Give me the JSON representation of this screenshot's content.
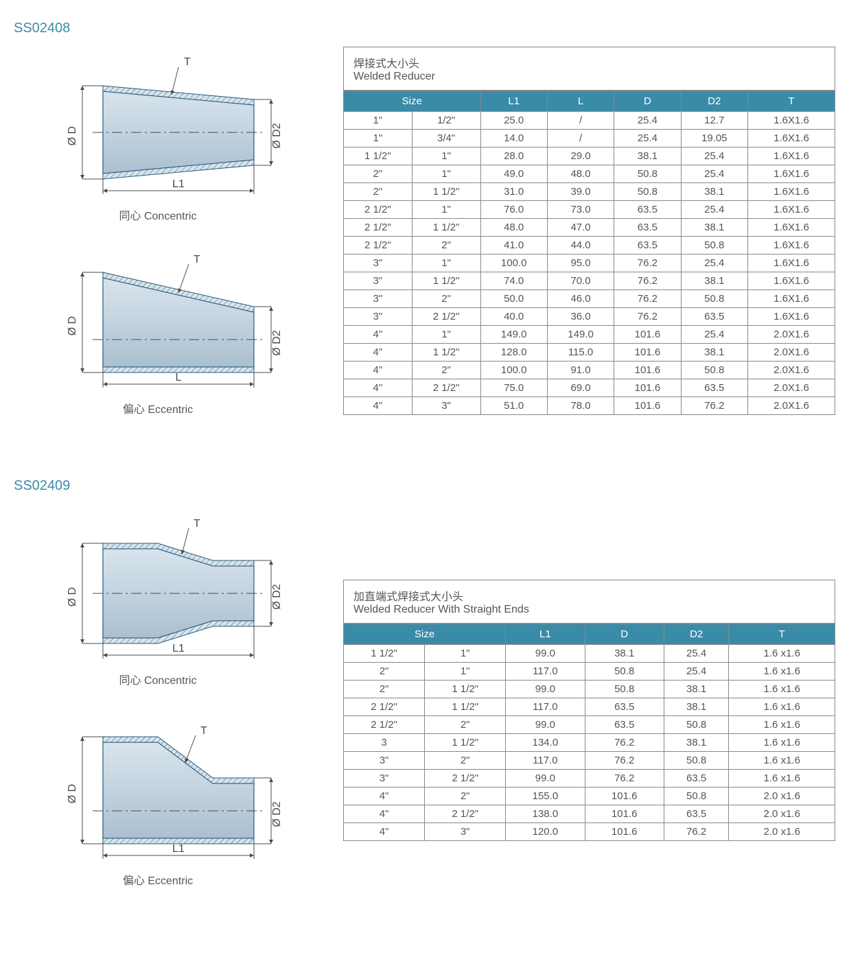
{
  "colors": {
    "accent": "#3a8ba8",
    "text": "#555555",
    "border": "#888888",
    "shape_light": "#d8e4ec",
    "shape_dark": "#aabfd0",
    "shape_stroke": "#2a5a7a"
  },
  "section1": {
    "code": "SS02408",
    "diagram1_label": "同心 Concentric",
    "diagram2_label": "偏心 Eccentric",
    "dim_D": "Ø D",
    "dim_D2": "Ø D2",
    "dim_L1": "L1",
    "dim_L": "L",
    "dim_T": "T",
    "title_cn": "焊接式大小头",
    "title_en": "Welded Reducer",
    "headers": [
      "Size",
      "L1",
      "L",
      "D",
      "D2",
      "T"
    ],
    "size_colspan": 2,
    "rows": [
      [
        "1\"",
        "1/2\"",
        "25.0",
        "/",
        "25.4",
        "12.7",
        "1.6X1.6"
      ],
      [
        "1\"",
        "3/4\"",
        "14.0",
        "/",
        "25.4",
        "19.05",
        "1.6X1.6"
      ],
      [
        "1 1/2\"",
        "1\"",
        "28.0",
        "29.0",
        "38.1",
        "25.4",
        "1.6X1.6"
      ],
      [
        "2\"",
        "1\"",
        "49.0",
        "48.0",
        "50.8",
        "25.4",
        "1.6X1.6"
      ],
      [
        "2\"",
        "1 1/2\"",
        "31.0",
        "39.0",
        "50.8",
        "38.1",
        "1.6X1.6"
      ],
      [
        "2 1/2\"",
        "1\"",
        "76.0",
        "73.0",
        "63.5",
        "25.4",
        "1.6X1.6"
      ],
      [
        "2 1/2\"",
        "1 1/2\"",
        "48.0",
        "47.0",
        "63.5",
        "38.1",
        "1.6X1.6"
      ],
      [
        "2 1/2\"",
        "2\"",
        "41.0",
        "44.0",
        "63.5",
        "50.8",
        "1.6X1.6"
      ],
      [
        "3\"",
        "1\"",
        "100.0",
        "95.0",
        "76.2",
        "25.4",
        "1.6X1.6"
      ],
      [
        "3\"",
        "1 1/2\"",
        "74.0",
        "70.0",
        "76.2",
        "38.1",
        "1.6X1.6"
      ],
      [
        "3\"",
        "2\"",
        "50.0",
        "46.0",
        "76.2",
        "50.8",
        "1.6X1.6"
      ],
      [
        "3\"",
        "2 1/2\"",
        "40.0",
        "36.0",
        "76.2",
        "63.5",
        "1.6X1.6"
      ],
      [
        "4\"",
        "1\"",
        "149.0",
        "149.0",
        "101.6",
        "25.4",
        "2.0X1.6"
      ],
      [
        "4\"",
        "1 1/2\"",
        "128.0",
        "115.0",
        "101.6",
        "38.1",
        "2.0X1.6"
      ],
      [
        "4\"",
        "2\"",
        "100.0",
        "91.0",
        "101.6",
        "50.8",
        "2.0X1.6"
      ],
      [
        "4\"",
        "2 1/2\"",
        "75.0",
        "69.0",
        "101.6",
        "63.5",
        "2.0X1.6"
      ],
      [
        "4\"",
        "3\"",
        "51.0",
        "78.0",
        "101.6",
        "76.2",
        "2.0X1.6"
      ]
    ]
  },
  "section2": {
    "code": "SS02409",
    "diagram1_label": "同心 Concentric",
    "diagram2_label": "偏心 Eccentric",
    "dim_D": "Ø D",
    "dim_D2": "Ø D2",
    "dim_L1": "L1",
    "dim_T": "T",
    "title_cn": "加直端式焊接式大小头",
    "title_en": "Welded Reducer With Straight Ends",
    "headers": [
      "Size",
      "L1",
      "D",
      "D2",
      "T"
    ],
    "size_colspan": 2,
    "rows": [
      [
        "1 1/2\"",
        "1\"",
        "99.0",
        "38.1",
        "25.4",
        "1.6 x1.6"
      ],
      [
        "2\"",
        "1\"",
        "117.0",
        "50.8",
        "25.4",
        "1.6 x1.6"
      ],
      [
        "2\"",
        "1 1/2\"",
        "99.0",
        "50.8",
        "38.1",
        "1.6 x1.6"
      ],
      [
        "2 1/2\"",
        "1 1/2\"",
        "117.0",
        "63.5",
        "38.1",
        "1.6 x1.6"
      ],
      [
        "2 1/2\"",
        "2\"",
        "99.0",
        "63.5",
        "50.8",
        "1.6 x1.6"
      ],
      [
        "3",
        "1 1/2\"",
        "134.0",
        "76.2",
        "38.1",
        "1.6 x1.6"
      ],
      [
        "3\"",
        "2\"",
        "117.0",
        "76.2",
        "50.8",
        "1.6 x1.6"
      ],
      [
        "3\"",
        "2 1/2\"",
        "99.0",
        "76.2",
        "63.5",
        "1.6 x1.6"
      ],
      [
        "4\"",
        "2\"",
        "155.0",
        "101.6",
        "50.8",
        "2.0 x1.6"
      ],
      [
        "4\"",
        "2 1/2\"",
        "138.0",
        "101.6",
        "63.5",
        "2.0 x1.6"
      ],
      [
        "4\"",
        "3\"",
        "120.0",
        "101.6",
        "76.2",
        "2.0 x1.6"
      ]
    ]
  }
}
